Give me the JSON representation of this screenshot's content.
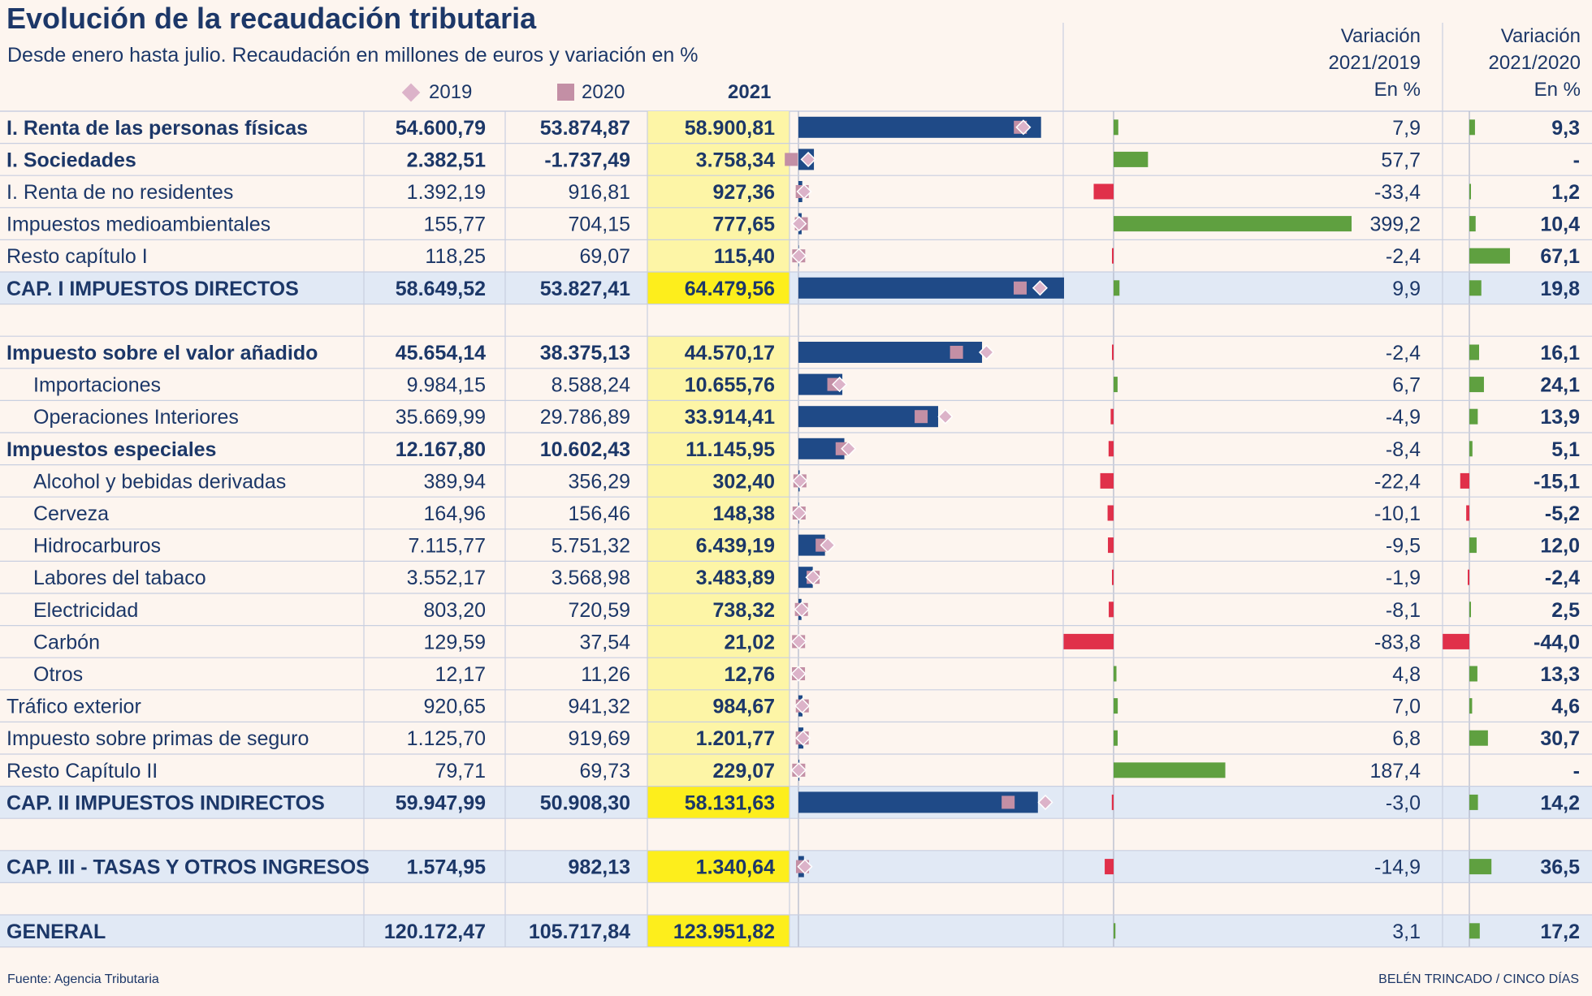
{
  "title": "Evolución de la recaudación tributaria",
  "subtitle": "Desde enero hasta julio. Recaudación en millones de euros y variación en %",
  "legend": {
    "y2019": "2019",
    "y2020": "2020",
    "y2021": "2021"
  },
  "var_headers": {
    "v1_line1": "Variación",
    "v1_line2": "2021/2019",
    "v1_unit": "En %",
    "v2_line1": "Variación",
    "v2_line2": "2021/2020",
    "v2_unit": "En %"
  },
  "footer": {
    "source": "Fuente: Agencia Tributaria",
    "credit": "BELÉN TRINCADO / CINCO DÍAS"
  },
  "colors": {
    "background": "#fdf5ef",
    "text": "#1c3768",
    "bar_2021": "#1f4a87",
    "marker_2019": "#dcb3c9",
    "marker_2020": "#c38fa5",
    "positive": "#5fa040",
    "negative": "#e0304a",
    "highlight_2021": "#fdf5a6",
    "highlight_strong": "#fdee1c",
    "total_row_bg": "#e1e9f5"
  },
  "chart_data": {
    "type": "table",
    "title": "Evolución de la recaudación tributaria",
    "columns": [
      "2019",
      "2020",
      "2021",
      "Variación 2021/2019 En %",
      "Variación 2021/2020 En %"
    ],
    "bar_scale_max": 64479.56,
    "var1_range": [
      -83.8,
      399.2
    ],
    "var2_range": [
      -44.0,
      67.1
    ],
    "rows": [
      {
        "label": "I. Renta de las personas físicas",
        "style": "bold",
        "v2019": 54600.79,
        "v2020": 53874.87,
        "v2021": 58900.81,
        "t2019": "54.600,79",
        "t2020": "53.874,87",
        "t2021": "58.900,81",
        "var1": 7.9,
        "var2": 9.3,
        "tvar1": "7,9",
        "tvar2": "9,3"
      },
      {
        "label": "I. Sociedades",
        "style": "bold",
        "v2019": 2382.51,
        "v2020": -1737.49,
        "v2021": 3758.34,
        "t2019": "2.382,51",
        "t2020": "-1.737,49",
        "t2021": "3.758,34",
        "var1": 57.7,
        "var2": null,
        "tvar1": "57,7",
        "tvar2": "-"
      },
      {
        "label": "I. Renta de no residentes",
        "style": "normal",
        "v2019": 1392.19,
        "v2020": 916.81,
        "v2021": 927.36,
        "t2019": "1.392,19",
        "t2020": "916,81",
        "t2021": "927,36",
        "var1": -33.4,
        "var2": 1.2,
        "tvar1": "-33,4",
        "tvar2": "1,2"
      },
      {
        "label": "Impuestos medioambientales",
        "style": "normal",
        "v2019": 155.77,
        "v2020": 704.15,
        "v2021": 777.65,
        "t2019": "155,77",
        "t2020": "704,15",
        "t2021": "777,65",
        "var1": 399.2,
        "var2": 10.4,
        "tvar1": "399,2",
        "tvar2": "10,4"
      },
      {
        "label": "Resto capítulo I",
        "style": "normal",
        "v2019": 118.25,
        "v2020": 69.07,
        "v2021": 115.4,
        "t2019": "118,25",
        "t2020": "69,07",
        "t2021": "115,40",
        "var1": -2.4,
        "var2": 67.1,
        "tvar1": "-2,4",
        "tvar2": "67,1"
      },
      {
        "label": "CAP. I IMPUESTOS DIRECTOS",
        "style": "total",
        "v2019": 58649.52,
        "v2020": 53827.41,
        "v2021": 64479.56,
        "t2019": "58.649,52",
        "t2020": "53.827,41",
        "t2021": "64.479,56",
        "var1": 9.9,
        "var2": 19.8,
        "tvar1": "9,9",
        "tvar2": "19,8"
      },
      {
        "spacer": true
      },
      {
        "label": "Impuesto sobre el valor añadido",
        "style": "bold",
        "v2019": 45654.14,
        "v2020": 38375.13,
        "v2021": 44570.17,
        "t2019": "45.654,14",
        "t2020": "38.375,13",
        "t2021": "44.570,17",
        "var1": -2.4,
        "var2": 16.1,
        "tvar1": "-2,4",
        "tvar2": "16,1"
      },
      {
        "label": "Importaciones",
        "style": "indent",
        "v2019": 9984.15,
        "v2020": 8588.24,
        "v2021": 10655.76,
        "t2019": "9.984,15",
        "t2020": "8.588,24",
        "t2021": "10.655,76",
        "var1": 6.7,
        "var2": 24.1,
        "tvar1": "6,7",
        "tvar2": "24,1"
      },
      {
        "label": "Operaciones Interiores",
        "style": "indent",
        "v2019": 35669.99,
        "v2020": 29786.89,
        "v2021": 33914.41,
        "t2019": "35.669,99",
        "t2020": "29.786,89",
        "t2021": "33.914,41",
        "var1": -4.9,
        "var2": 13.9,
        "tvar1": "-4,9",
        "tvar2": "13,9"
      },
      {
        "label": "Impuestos especiales",
        "style": "bold",
        "v2019": 12167.8,
        "v2020": 10602.43,
        "v2021": 11145.95,
        "t2019": "12.167,80",
        "t2020": "10.602,43",
        "t2021": "11.145,95",
        "var1": -8.4,
        "var2": 5.1,
        "tvar1": "-8,4",
        "tvar2": "5,1"
      },
      {
        "label": "Alcohol y bebidas derivadas",
        "style": "indent",
        "v2019": 389.94,
        "v2020": 356.29,
        "v2021": 302.4,
        "t2019": "389,94",
        "t2020": "356,29",
        "t2021": "302,40",
        "var1": -22.4,
        "var2": -15.1,
        "tvar1": "-22,4",
        "tvar2": "-15,1"
      },
      {
        "label": "Cerveza",
        "style": "indent",
        "v2019": 164.96,
        "v2020": 156.46,
        "v2021": 148.38,
        "t2019": "164,96",
        "t2020": "156,46",
        "t2021": "148,38",
        "var1": -10.1,
        "var2": -5.2,
        "tvar1": "-10,1",
        "tvar2": "-5,2"
      },
      {
        "label": "Hidrocarburos",
        "style": "indent",
        "v2019": 7115.77,
        "v2020": 5751.32,
        "v2021": 6439.19,
        "t2019": "7.115,77",
        "t2020": "5.751,32",
        "t2021": "6.439,19",
        "var1": -9.5,
        "var2": 12.0,
        "tvar1": "-9,5",
        "tvar2": "12,0"
      },
      {
        "label": "Labores del tabaco",
        "style": "indent",
        "v2019": 3552.17,
        "v2020": 3568.98,
        "v2021": 3483.89,
        "t2019": "3.552,17",
        "t2020": "3.568,98",
        "t2021": "3.483,89",
        "var1": -1.9,
        "var2": -2.4,
        "tvar1": "-1,9",
        "tvar2": "-2,4"
      },
      {
        "label": "Electricidad",
        "style": "indent",
        "v2019": 803.2,
        "v2020": 720.59,
        "v2021": 738.32,
        "t2019": "803,20",
        "t2020": "720,59",
        "t2021": "738,32",
        "var1": -8.1,
        "var2": 2.5,
        "tvar1": "-8,1",
        "tvar2": "2,5"
      },
      {
        "label": "Carbón",
        "style": "indent",
        "v2019": 129.59,
        "v2020": 37.54,
        "v2021": 21.02,
        "t2019": "129,59",
        "t2020": "37,54",
        "t2021": "21,02",
        "var1": -83.8,
        "var2": -44.0,
        "tvar1": "-83,8",
        "tvar2": "-44,0"
      },
      {
        "label": "Otros",
        "style": "indent",
        "v2019": 12.17,
        "v2020": 11.26,
        "v2021": 12.76,
        "t2019": "12,17",
        "t2020": "11,26",
        "t2021": "12,76",
        "var1": 4.8,
        "var2": 13.3,
        "tvar1": "4,8",
        "tvar2": "13,3"
      },
      {
        "label": "Tráfico exterior",
        "style": "normal",
        "v2019": 920.65,
        "v2020": 941.32,
        "v2021": 984.67,
        "t2019": "920,65",
        "t2020": "941,32",
        "t2021": "984,67",
        "var1": 7.0,
        "var2": 4.6,
        "tvar1": "7,0",
        "tvar2": "4,6"
      },
      {
        "label": "Impuesto sobre primas de seguro",
        "style": "normal",
        "v2019": 1125.7,
        "v2020": 919.69,
        "v2021": 1201.77,
        "t2019": "1.125,70",
        "t2020": "919,69",
        "t2021": "1.201,77",
        "var1": 6.8,
        "var2": 30.7,
        "tvar1": "6,8",
        "tvar2": "30,7"
      },
      {
        "label": "Resto Capítulo II",
        "style": "normal",
        "v2019": 79.71,
        "v2020": 69.73,
        "v2021": 229.07,
        "t2019": "79,71",
        "t2020": "69,73",
        "t2021": "229,07",
        "var1": 187.4,
        "var2": null,
        "tvar1": "187,4",
        "tvar2": "-"
      },
      {
        "label": "CAP. II IMPUESTOS INDIRECTOS",
        "style": "total",
        "v2019": 59947.99,
        "v2020": 50908.3,
        "v2021": 58131.63,
        "t2019": "59.947,99",
        "t2020": "50.908,30",
        "t2021": "58.131,63",
        "var1": -3.0,
        "var2": 14.2,
        "tvar1": "-3,0",
        "tvar2": "14,2"
      },
      {
        "spacer": true
      },
      {
        "label": "CAP. III - TASAS Y OTROS INGRESOS",
        "style": "total-strong",
        "v2019": 1574.95,
        "v2020": 982.13,
        "v2021": 1340.64,
        "t2019": "1.574,95",
        "t2020": "982,13",
        "t2021": "1.340,64",
        "var1": -14.9,
        "var2": 36.5,
        "tvar1": "-14,9",
        "tvar2": "36,5"
      },
      {
        "spacer": true
      },
      {
        "label": "GENERAL",
        "style": "total-strong",
        "nobars": true,
        "v2019": 120172.47,
        "v2020": 105717.84,
        "v2021": 123951.82,
        "t2019": "120.172,47",
        "t2020": "105.717,84",
        "t2021": "123.951,82",
        "var1": 3.1,
        "var2": 17.2,
        "tvar1": "3,1",
        "tvar2": "17,2"
      }
    ]
  }
}
